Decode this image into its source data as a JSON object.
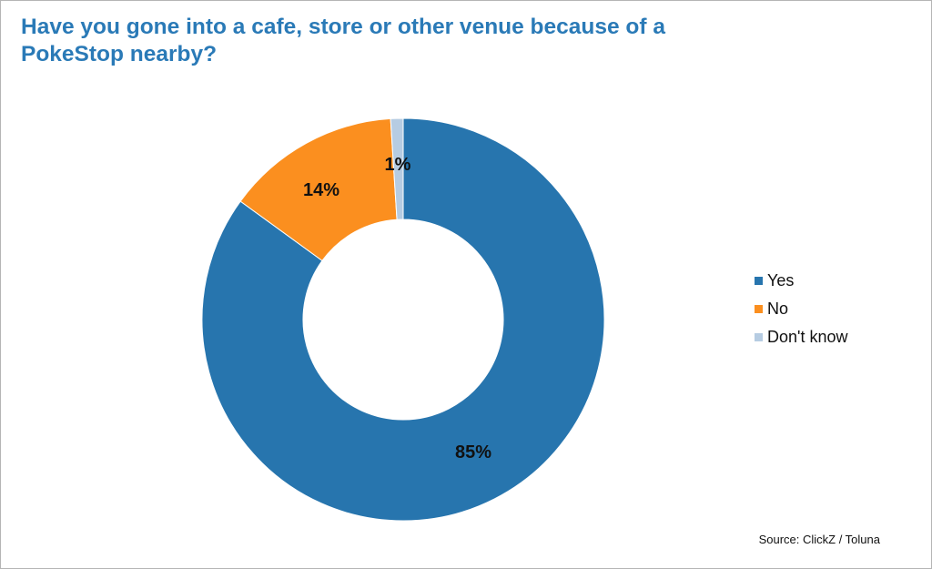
{
  "chart_data": {
    "type": "pie",
    "variant": "donut",
    "title": "Have you gone into a cafe, store or other venue because of a PokeStop nearby?",
    "categories": [
      "Yes",
      "No",
      "Don't know"
    ],
    "values": [
      85,
      14,
      1
    ],
    "data_labels": [
      "85%",
      "14%",
      "1%"
    ],
    "colors": [
      "#2775ae",
      "#fb8f1f",
      "#b6cce2"
    ],
    "legend_position": "right",
    "source": "Source: ClickZ / Toluna"
  }
}
